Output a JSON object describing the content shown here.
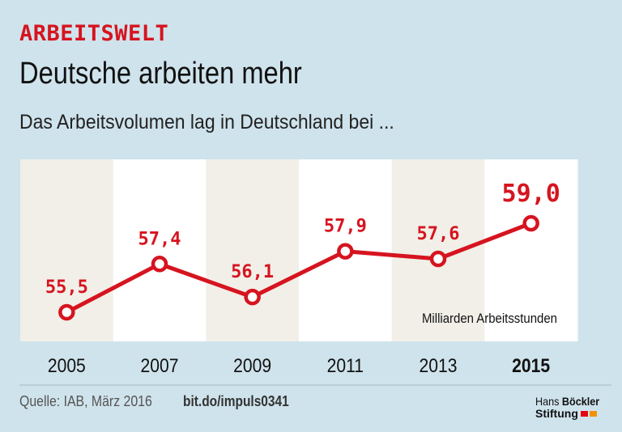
{
  "header": {
    "kicker": "ARBEITSWELT",
    "title": "Deutsche arbeiten mehr",
    "subtitle": "Das Arbeitsvolumen lag in Deutschland bei ..."
  },
  "colors": {
    "background": "#cfe3ec",
    "accent_red": "#d6141f",
    "column_beige": "#f1efe8",
    "column_white": "#ffffff"
  },
  "chart_data": {
    "type": "line",
    "title": "Das Arbeitsvolumen lag in Deutschland bei ...",
    "categories": [
      "2005",
      "2007",
      "2009",
      "2011",
      "2013",
      "2015"
    ],
    "series": [
      {
        "name": "Arbeitsvolumen",
        "values": [
          55.5,
          57.4,
          56.1,
          57.9,
          57.6,
          59.0
        ],
        "labels": [
          "55,5",
          "57,4",
          "56,1",
          "57,9",
          "57,6",
          "59,0"
        ]
      }
    ],
    "highlight_category": "2015",
    "unit_annotation": "Milliarden Arbeitsstunden",
    "xlabel": "",
    "ylabel": "",
    "ylim": [
      54.5,
      60
    ],
    "grid": false,
    "legend": "none"
  },
  "footer": {
    "source": "Quelle: IAB, März 2016",
    "link": "bit.do/impuls0341",
    "brand_line1_a": "Hans",
    "brand_line1_b": "Böckler",
    "brand_line2": "Stiftung"
  }
}
